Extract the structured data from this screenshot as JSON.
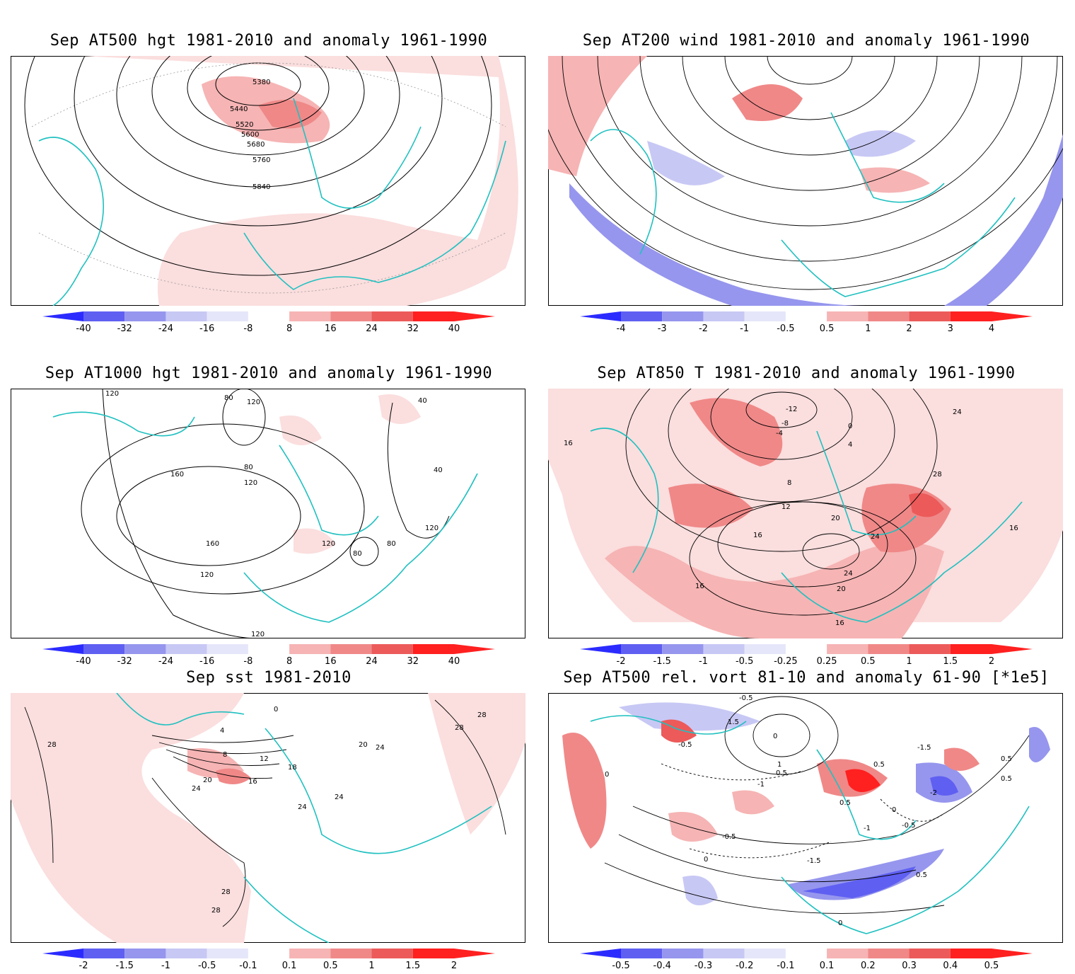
{
  "panels": [
    {
      "id": "p1",
      "title": "Sep AT500 hgt 1981-2010 and anomaly 1961-1990",
      "contour_labels": [
        "5380",
        "5440",
        "5520",
        "5600",
        "5680",
        "5760",
        "5840"
      ],
      "colorbar": {
        "ticks": [
          "-40",
          "-32",
          "-24",
          "-16",
          "-8",
          "8",
          "16",
          "24",
          "32",
          "40"
        ]
      }
    },
    {
      "id": "p2",
      "title": "Sep AT200 wind 1981-2010 and anomaly 1961-1990",
      "contour_labels": [],
      "colorbar": {
        "ticks": [
          "-4",
          "-3",
          "-2",
          "-1",
          "-0.5",
          "0.5",
          "1",
          "2",
          "3",
          "4"
        ]
      }
    },
    {
      "id": "p3",
      "title": "Sep AT1000 hgt 1981-2010 and anomaly 1961-1990",
      "contour_labels": [
        "120",
        "80",
        "120",
        "40",
        "80",
        "40",
        "160",
        "120",
        "160",
        "120",
        "80",
        "120",
        "80",
        "120",
        "120"
      ],
      "colorbar": {
        "ticks": [
          "-40",
          "-32",
          "-24",
          "-16",
          "-8",
          "8",
          "16",
          "24",
          "32",
          "40"
        ]
      }
    },
    {
      "id": "p4",
      "title": "Sep AT850 T 1981-2010 and anomaly 1961-1990",
      "contour_labels": [
        "-12",
        "-8",
        "-4",
        "0",
        "4",
        "8",
        "12",
        "16",
        "20",
        "24",
        "28",
        "24",
        "16",
        "20",
        "24",
        "16",
        "16",
        "16"
      ],
      "colorbar": {
        "ticks": [
          "-2",
          "-1.5",
          "-1",
          "-0.5",
          "-0.25",
          "0.25",
          "0.5",
          "1",
          "1.5",
          "2"
        ]
      }
    },
    {
      "id": "p5",
      "title": "Sep sst 1981-2010",
      "contour_labels": [
        "0",
        "4",
        "8",
        "12",
        "16",
        "20",
        "24",
        "28",
        "28",
        "24",
        "18",
        "24",
        "24",
        "20",
        "28",
        "28",
        "28"
      ],
      "colorbar": {
        "ticks": [
          "-2",
          "-1.5",
          "-1",
          "-0.5",
          "-0.1",
          "0.1",
          "0.5",
          "1",
          "1.5",
          "2"
        ]
      }
    },
    {
      "id": "p6",
      "title": "Sep AT500 rel. vort 81-10 and anomaly 61-90 [*1e5]",
      "contour_labels": [
        "-0.5",
        "1.5",
        "0",
        "-1",
        "0.5",
        "1",
        "-0.5",
        "0.5",
        "-1.5",
        "-2",
        "0.5",
        "-1",
        "0",
        "0.5",
        "-0.5",
        "0",
        "-1.5",
        "-0.5",
        "0",
        "0.5",
        "0.5",
        "0"
      ],
      "colorbar": {
        "ticks": [
          "-0.5",
          "-0.4",
          "-0.3",
          "-0.2",
          "-0.1",
          "0.1",
          "0.2",
          "0.3",
          "0.4",
          "0.5"
        ]
      }
    }
  ],
  "colors": {
    "blue_scale": [
      "#2b2bff",
      "#5f5ff2",
      "#9696ee",
      "#c8c8f5",
      "#e6e6fa"
    ],
    "red_scale": [
      "#fbdede",
      "#f6b4b4",
      "#f08888",
      "#ec5a5a",
      "#ff2020"
    ],
    "coast": "#20c0c0"
  }
}
